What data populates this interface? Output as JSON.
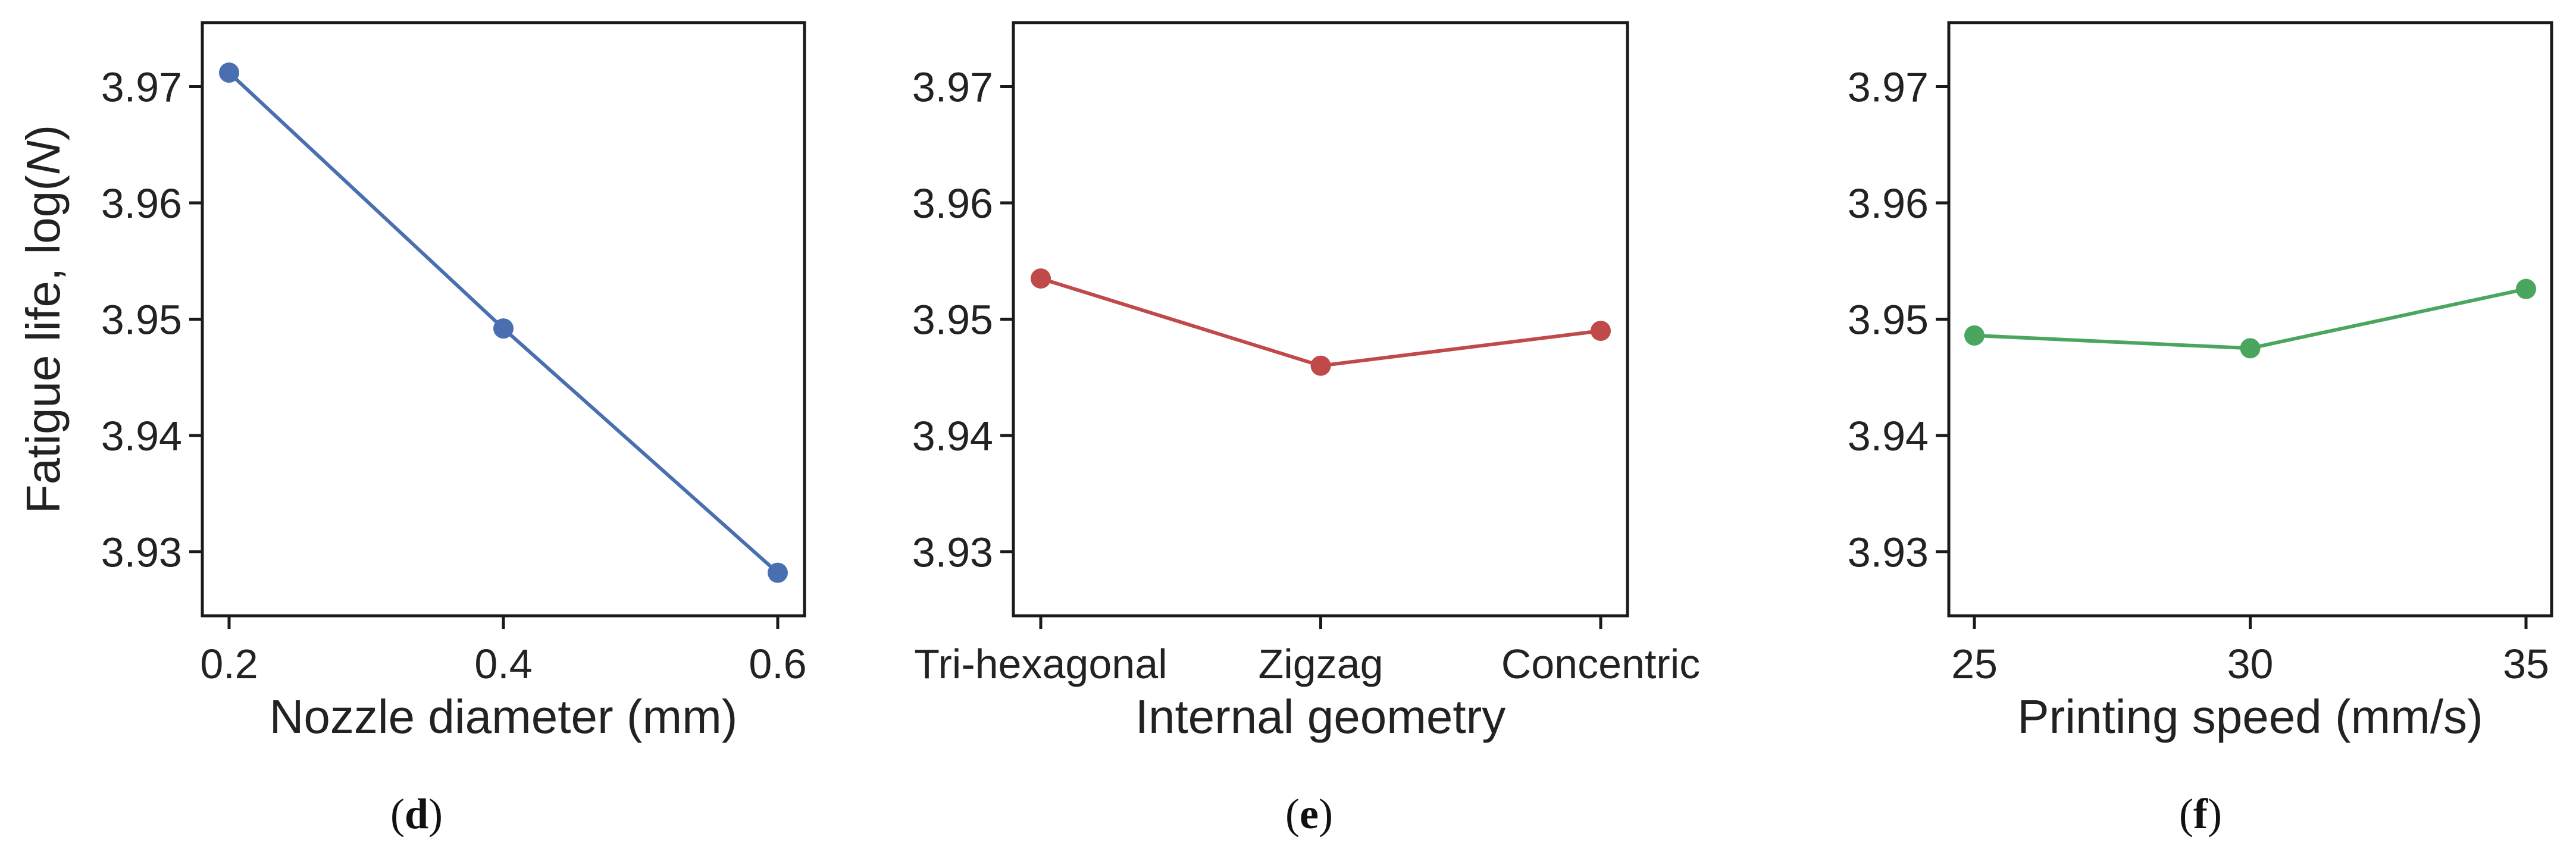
{
  "chart_data": [
    {
      "type": "line",
      "panel_label": "d",
      "xlabel": "Nozzle diameter (mm)",
      "ylabel": "Fatigue life, log(N)",
      "categories": [
        "0.2",
        "0.4",
        "0.6"
      ],
      "x": [
        0.2,
        0.4,
        0.6
      ],
      "series": [
        {
          "values": [
            3.9712,
            3.9492,
            3.9282
          ],
          "color": "#4a6fb0"
        }
      ],
      "y_ticks": [
        "3.93",
        "3.94",
        "3.95",
        "3.96",
        "3.97"
      ],
      "ylim": [
        3.9245,
        3.9755
      ],
      "grid": false
    },
    {
      "type": "line",
      "panel_label": "e",
      "xlabel": "Internal geometry",
      "ylabel": "",
      "categories": [
        "Tri-hexagonal",
        "Zigzag",
        "Concentric"
      ],
      "series": [
        {
          "values": [
            3.9535,
            3.946,
            3.949
          ],
          "color": "#c0494a"
        }
      ],
      "y_ticks": [
        "3.93",
        "3.94",
        "3.95",
        "3.96",
        "3.97"
      ],
      "ylim": [
        3.9245,
        3.9755
      ],
      "grid": false
    },
    {
      "type": "line",
      "panel_label": "f",
      "xlabel": "Printing speed (mm/s)",
      "ylabel": "",
      "categories": [
        "25",
        "30",
        "35"
      ],
      "x": [
        25,
        30,
        35
      ],
      "series": [
        {
          "values": [
            3.9486,
            3.9475,
            3.9526
          ],
          "color": "#4aa65e"
        }
      ],
      "y_ticks": [
        "3.93",
        "3.94",
        "3.95",
        "3.96",
        "3.97"
      ],
      "ylim": [
        3.9245,
        3.9755
      ],
      "grid": false
    }
  ]
}
